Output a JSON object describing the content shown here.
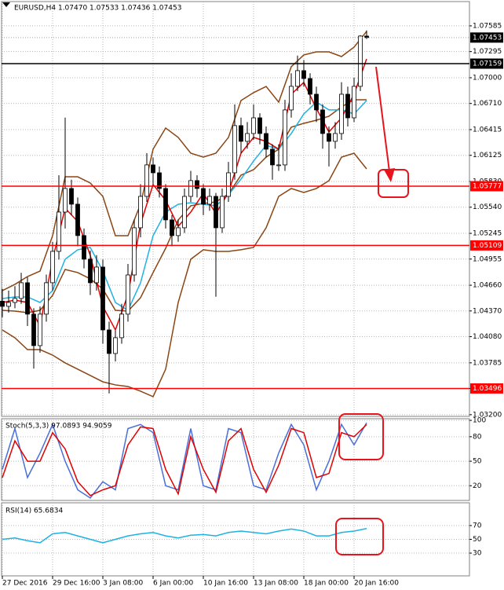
{
  "chart_data": [
    {
      "type": "candlestick",
      "title": "EURUSD,H4  1.07470 1.07533 1.07436 1.07453",
      "xlim": [
        -0.125,
        74.375
      ],
      "xticks": [
        {
          "value": 0,
          "label": "27 Dec 2016"
        },
        {
          "value": 8,
          "label": "29 Dec 16:00"
        },
        {
          "value": 16,
          "label": "3 Jan 08:00"
        },
        {
          "value": 24,
          "label": "6 Jan 00:00"
        },
        {
          "value": 32,
          "label": "10 Jan 16:00"
        },
        {
          "value": 40,
          "label": "13 Jan 08:00"
        },
        {
          "value": 48,
          "label": "18 Jan 00:00"
        },
        {
          "value": 56,
          "label": "20 Jan 16:00"
        }
      ],
      "ylim": [
        1.03181,
        1.07859
      ],
      "yticks": [
        1.07585,
        1.07295,
        {
          "value": 1.07,
          "label": "1.07000"
        },
        {
          "value": 1.0671,
          "label": "1.06710"
        },
        1.06415,
        1.06125,
        {
          "value": 1.0583,
          "label": "1.05830"
        },
        {
          "value": 1.0554,
          "label": "1.05540"
        },
        1.05245,
        1.04955,
        {
          "value": 1.0466,
          "label": "1.04660"
        },
        {
          "value": 1.0437,
          "label": "1.04370"
        },
        {
          "value": 1.0408,
          "label": "1.04080"
        },
        1.03785,
        1.03495,
        {
          "value": 1.032,
          "label": "1.03200"
        }
      ],
      "grid": true,
      "open": [
        1.0448,
        1.04422,
        1.04466,
        1.04511,
        1.04688,
        1.04334,
        1.03979,
        1.04334,
        1.04688,
        1.05042,
        1.05485,
        1.05751,
        1.05574,
        1.0522,
        1.04954,
        1.04688,
        1.04865,
        1.04156,
        1.0389,
        1.04068,
        1.04334,
        1.04776,
        1.05308,
        1.05662,
        1.06017,
        1.05928,
        1.05751,
        1.05397,
        1.0522,
        1.05308,
        1.05662,
        1.0584,
        1.05751,
        1.05574,
        1.05662,
        1.05308,
        1.05662,
        1.05928,
        1.0646,
        1.06283,
        1.06371,
        1.06548,
        1.06371,
        1.06194,
        1.06017,
        1.06017,
        1.06637,
        1.06903,
        1.0708,
        1.06991,
        1.06814,
        1.06637,
        1.06371,
        1.06283,
        1.06371,
        1.06814,
        1.06548,
        1.06903,
        1.0747
      ],
      "high": [
        1.0462,
        1.046,
        1.0465,
        1.048,
        1.0475,
        1.044,
        1.0442,
        1.0478,
        1.0515,
        1.059,
        1.0655,
        1.0585,
        1.0565,
        1.053,
        1.0505,
        1.05,
        1.0495,
        1.0425,
        1.0415,
        1.0445,
        1.049,
        1.054,
        1.058,
        1.0615,
        1.061,
        1.06,
        1.058,
        1.0545,
        1.054,
        1.0575,
        1.0595,
        1.059,
        1.058,
        1.0575,
        1.057,
        1.0575,
        1.0605,
        1.067,
        1.0655,
        1.065,
        1.067,
        1.066,
        1.0645,
        1.0625,
        1.0625,
        1.0675,
        1.0705,
        1.0725,
        1.072,
        1.0705,
        1.069,
        1.067,
        1.0645,
        1.065,
        1.0695,
        1.069,
        1.07,
        1.0748,
        1.07533
      ],
      "low": [
        1.043,
        1.0435,
        1.044,
        1.0445,
        1.042,
        1.0372,
        1.039,
        1.0425,
        1.046,
        1.0495,
        1.053,
        1.0545,
        1.051,
        1.0485,
        1.0455,
        1.046,
        1.04,
        1.0344,
        1.038,
        1.04,
        1.0425,
        1.047,
        1.052,
        1.056,
        1.058,
        1.0565,
        1.053,
        1.051,
        1.0515,
        1.0525,
        1.056,
        1.0565,
        1.0545,
        1.055,
        1.0453,
        1.0525,
        1.056,
        1.0585,
        1.0615,
        1.062,
        1.063,
        1.0625,
        1.061,
        1.0585,
        1.0595,
        1.0595,
        1.0655,
        1.0685,
        1.069,
        1.067,
        1.065,
        1.062,
        1.06,
        1.062,
        1.063,
        1.0645,
        1.065,
        1.0685,
        1.07436
      ],
      "close": [
        1.04422,
        1.04466,
        1.04511,
        1.04688,
        1.04334,
        1.03979,
        1.04334,
        1.04688,
        1.05042,
        1.05485,
        1.05751,
        1.05574,
        1.0522,
        1.04954,
        1.04688,
        1.04865,
        1.04156,
        1.0389,
        1.04068,
        1.04334,
        1.04776,
        1.05308,
        1.05662,
        1.06017,
        1.05928,
        1.05751,
        1.05397,
        1.0522,
        1.05308,
        1.05662,
        1.0584,
        1.05751,
        1.05574,
        1.05662,
        1.05308,
        1.05662,
        1.05928,
        1.0646,
        1.06283,
        1.06371,
        1.06548,
        1.06371,
        1.06194,
        1.06017,
        1.06017,
        1.06637,
        1.06903,
        1.0708,
        1.06991,
        1.06814,
        1.06637,
        1.06371,
        1.06283,
        1.06371,
        1.06814,
        1.06548,
        1.06903,
        1.0747,
        1.07453
      ],
      "indicator_x": [
        0,
        2,
        4,
        6,
        8,
        10,
        12,
        14,
        16,
        18,
        20,
        22,
        24,
        26,
        28,
        30,
        32,
        34,
        36,
        38,
        40,
        42,
        44,
        46,
        48,
        50,
        52,
        54,
        56,
        58
      ],
      "series": [
        {
          "color": "#8b4513",
          "values": [
            1.04599,
            1.0467,
            1.04758,
            1.0482,
            1.05219,
            1.05883,
            1.05883,
            1.05813,
            1.05662,
            1.05219,
            1.05219,
            1.05573,
            1.06194,
            1.06433,
            1.06327,
            1.06149,
            1.06105,
            1.06149,
            1.06327,
            1.06743,
            1.06832,
            1.06902,
            1.06725,
            1.07124,
            1.07257,
            1.07292,
            1.07292,
            1.07239,
            1.07345,
            1.07523
          ]
        },
        {
          "color": "#8b4513",
          "values": [
            1.04377,
            1.04368,
            1.04351,
            1.04377,
            1.04546,
            1.04838,
            1.04803,
            1.04732,
            1.04617,
            1.04377,
            1.04368,
            1.04519,
            1.04803,
            1.05077,
            1.05396,
            1.05556,
            1.05582,
            1.056,
            1.05689,
            1.05901,
            1.05963,
            1.06105,
            1.06194,
            1.06442,
            1.06486,
            1.06521,
            1.06566,
            1.06672,
            1.06752,
            1.06752
          ]
        },
        {
          "color": "#8b4513",
          "values": [
            1.04156,
            1.04067,
            1.03934,
            1.03934,
            1.03872,
            1.03784,
            1.03713,
            1.03642,
            1.03571,
            1.03536,
            1.03518,
            1.03465,
            1.03403,
            1.03713,
            1.04466,
            1.04953,
            1.0506,
            1.05042,
            1.05042,
            1.0506,
            1.05086,
            1.05308,
            1.05662,
            1.05751,
            1.05706,
            1.05751,
            1.05839,
            1.06105,
            1.06149,
            1.05972
          ]
        },
        {
          "color": "#1fb1e6",
          "values": [
            1.0451,
            1.04528,
            1.04528,
            1.04466,
            1.04599,
            1.04953,
            1.0506,
            1.05086,
            1.0482,
            1.04466,
            1.04377,
            1.04687,
            1.05219,
            1.05485,
            1.05573,
            1.05591,
            1.05573,
            1.05556,
            1.0568,
            1.05857,
            1.06061,
            1.06238,
            1.06194,
            1.06371,
            1.06592,
            1.06725,
            1.06637,
            1.06637,
            1.06592,
            1.06743
          ]
        },
        {
          "color": "#e00000",
          "values": [
            1.04466,
            1.04492,
            1.04466,
            1.042,
            1.04953,
            1.05529,
            1.05378,
            1.04997,
            1.04422,
            1.04156,
            1.04554,
            1.05352,
            1.05795,
            1.05618,
            1.05325,
            1.05485,
            1.05697,
            1.05467,
            1.05706,
            1.06149,
            1.06327,
            1.06282,
            1.06194,
            1.06814,
            1.06947,
            1.06654,
            1.06389,
            1.06548,
            1.06814,
            1.07212
          ]
        }
      ],
      "levels": [
        {
          "value": 1.07159,
          "color": "#000000"
        },
        {
          "value": 1.05777,
          "color": "#ff0000"
        },
        {
          "value": 1.05109,
          "color": "#ff0000"
        },
        {
          "value": 1.03496,
          "color": "#ff0000"
        }
      ]
    },
    {
      "type": "line",
      "title": "Stoch(5,3,3) 97.0893 94.9059",
      "ylim": [
        2,
        102
      ],
      "yticks": [
        100,
        80,
        50,
        20
      ],
      "x": [
        0,
        2,
        4,
        6,
        8,
        10,
        12,
        14,
        16,
        18,
        20,
        22,
        24,
        26,
        28,
        30,
        32,
        34,
        36,
        38,
        40,
        42,
        44,
        46,
        48,
        50,
        52,
        54,
        56,
        58
      ],
      "series": [
        {
          "color": "#4a6fd8",
          "values": [
            40,
            90,
            30,
            60,
            95,
            50,
            15,
            5,
            25,
            15,
            90,
            95,
            85,
            20,
            15,
            90,
            20,
            15,
            90,
            85,
            20,
            15,
            60,
            95,
            70,
            15,
            50,
            95,
            70,
            97.0893
          ]
        },
        {
          "color": "#e00000",
          "values": [
            30,
            75,
            50,
            50,
            85,
            65,
            25,
            8,
            15,
            20,
            70,
            92,
            90,
            40,
            10,
            80,
            40,
            12,
            75,
            90,
            40,
            12,
            45,
            90,
            85,
            30,
            35,
            85,
            80,
            94.9059
          ]
        }
      ]
    },
    {
      "type": "line",
      "title": "RSI(14) 65.6834",
      "ylim": [
        -3,
        103
      ],
      "yticks": [
        70,
        50,
        30
      ],
      "x": [
        0,
        2,
        4,
        6,
        8,
        10,
        12,
        14,
        16,
        18,
        20,
        22,
        24,
        26,
        28,
        30,
        32,
        34,
        36,
        38,
        40,
        42,
        44,
        46,
        48,
        50,
        52,
        54,
        56,
        58
      ],
      "series": [
        {
          "color": "#1fb1e6",
          "values": [
            50,
            52,
            48,
            45,
            58,
            60,
            55,
            50,
            45,
            50,
            55,
            58,
            60,
            55,
            52,
            56,
            57,
            55,
            60,
            62,
            60,
            58,
            62,
            65,
            62,
            55,
            55,
            60,
            62,
            65.6834
          ]
        }
      ]
    }
  ]
}
